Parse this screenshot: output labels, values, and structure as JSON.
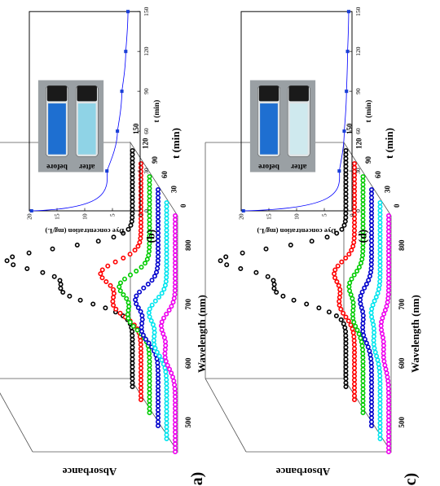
{
  "chart_data": [
    {
      "panel": "(a)",
      "type": "line",
      "projection": "3d-waterfall",
      "zlabel": "Absorbance",
      "xlabel": "Wavelength (nm)",
      "ylabel": "t (min)",
      "x_ticks": [
        500,
        600,
        700,
        800
      ],
      "y_ticks": [
        0,
        30,
        60,
        90,
        120,
        150
      ],
      "series": [
        {
          "t": 0,
          "color": "#000000",
          "peak": 1.0,
          "shoulder": 0.55
        },
        {
          "t": 30,
          "color": "#ff0000",
          "peak": 0.32,
          "shoulder": 0.22
        },
        {
          "t": 60,
          "color": "#00cc00",
          "peak": 0.24,
          "shoulder": 0.17
        },
        {
          "t": 90,
          "color": "#0000cc",
          "peak": 0.18,
          "shoulder": 0.13
        },
        {
          "t": 120,
          "color": "#00e5ee",
          "peak": 0.14,
          "shoulder": 0.1
        },
        {
          "t": 150,
          "color": "#ee00ee",
          "peak": 0.11,
          "shoulder": 0.08
        }
      ]
    },
    {
      "panel": "(b)",
      "type": "scatter",
      "xlabel": "t (min)",
      "ylabel": "Dye concentration (mg/L)",
      "xlim": [
        0,
        150
      ],
      "ylim": [
        0,
        20
      ],
      "x_ticks": [
        0,
        30,
        60,
        90,
        120,
        150
      ],
      "y_ticks": [
        0,
        5,
        10,
        15,
        20
      ],
      "points": [
        [
          0,
          19.6
        ],
        [
          30,
          6.0
        ],
        [
          60,
          4.1
        ],
        [
          90,
          3.3
        ],
        [
          120,
          2.6
        ],
        [
          150,
          2.2
        ]
      ],
      "marker_color": "#1a3fd6",
      "fit_color": "#0000ff",
      "inset_labels": [
        "before",
        "after"
      ],
      "vial_colors": {
        "before": "#1e6fd1",
        "after": "#8fd3e6"
      }
    },
    {
      "panel": "(c)",
      "type": "line",
      "projection": "3d-waterfall",
      "zlabel": "Absorbance",
      "xlabel": "Wavelength (nm)",
      "ylabel": "t (min)",
      "x_ticks": [
        500,
        600,
        700,
        800
      ],
      "y_ticks": [
        0,
        30,
        60,
        90,
        120,
        150
      ],
      "series": [
        {
          "t": 0,
          "color": "#000000",
          "peak": 1.0,
          "shoulder": 0.55
        },
        {
          "t": 30,
          "color": "#ff0000",
          "peak": 0.16,
          "shoulder": 0.12
        },
        {
          "t": 60,
          "color": "#00cc00",
          "peak": 0.11,
          "shoulder": 0.08
        },
        {
          "t": 90,
          "color": "#0000cc",
          "peak": 0.09,
          "shoulder": 0.07
        },
        {
          "t": 120,
          "color": "#00e5ee",
          "peak": 0.07,
          "shoulder": 0.05
        },
        {
          "t": 150,
          "color": "#ee00ee",
          "peak": 0.06,
          "shoulder": 0.04
        }
      ]
    },
    {
      "panel": "(d)",
      "type": "scatter",
      "xlabel": "t (min)",
      "ylabel": "Dye concentration (mg/L)",
      "xlim": [
        0,
        150
      ],
      "ylim": [
        0,
        20
      ],
      "x_ticks": [
        0,
        30,
        60,
        90,
        120,
        150
      ],
      "y_ticks": [
        0,
        5,
        10,
        15,
        20
      ],
      "points": [
        [
          0,
          19.6
        ],
        [
          30,
          2.3
        ],
        [
          60,
          1.4
        ],
        [
          90,
          1.0
        ],
        [
          120,
          0.8
        ],
        [
          150,
          0.6
        ]
      ],
      "marker_color": "#1a3fd6",
      "fit_color": "#0000ff",
      "inset_labels": [
        "before",
        "after"
      ],
      "vial_colors": {
        "before": "#1e6fd1",
        "after": "#cfe9ee"
      }
    }
  ]
}
